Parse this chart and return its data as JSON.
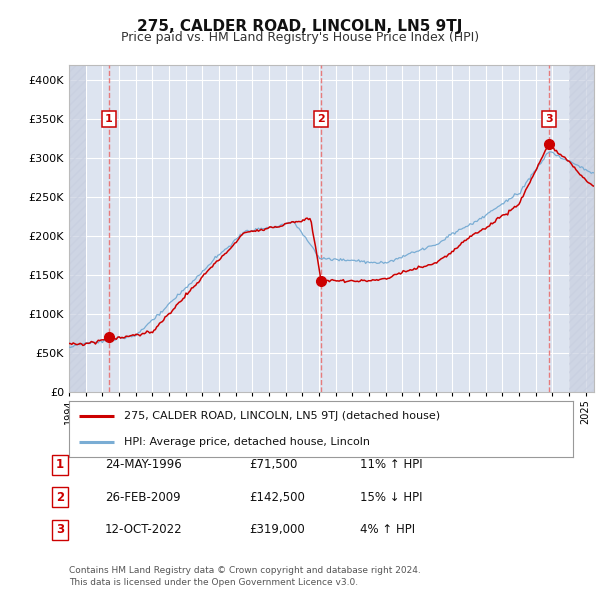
{
  "title": "275, CALDER ROAD, LINCOLN, LN5 9TJ",
  "subtitle": "Price paid vs. HM Land Registry's House Price Index (HPI)",
  "title_fontsize": 11,
  "subtitle_fontsize": 9,
  "xlim": [
    1994.0,
    2025.5
  ],
  "ylim": [
    0,
    420000
  ],
  "yticks": [
    0,
    50000,
    100000,
    150000,
    200000,
    250000,
    300000,
    350000,
    400000
  ],
  "background_color": "#ffffff",
  "plot_bg_color": "#dde4f0",
  "grid_color": "#ffffff",
  "legend_label_red": "275, CALDER ROAD, LINCOLN, LN5 9TJ (detached house)",
  "legend_label_blue": "HPI: Average price, detached house, Lincoln",
  "sale_points": [
    {
      "date": 1996.38,
      "price": 71500,
      "label": "1"
    },
    {
      "date": 2009.13,
      "price": 142500,
      "label": "2"
    },
    {
      "date": 2022.78,
      "price": 319000,
      "label": "3"
    }
  ],
  "vline_dates": [
    1996.38,
    2009.13,
    2022.78
  ],
  "table_rows": [
    {
      "num": "1",
      "date": "24-MAY-1996",
      "price": "£71,500",
      "hpi": "11% ↑ HPI"
    },
    {
      "num": "2",
      "date": "26-FEB-2009",
      "price": "£142,500",
      "hpi": "15% ↓ HPI"
    },
    {
      "num": "3",
      "date": "12-OCT-2022",
      "price": "£319,000",
      "hpi": "4% ↑ HPI"
    }
  ],
  "footer_text": "Contains HM Land Registry data © Crown copyright and database right 2024.\nThis data is licensed under the Open Government Licence v3.0.",
  "red_color": "#cc0000",
  "blue_color": "#7aadd4",
  "vline_color": "#e87070",
  "hatch_color": "#c8cfe0"
}
